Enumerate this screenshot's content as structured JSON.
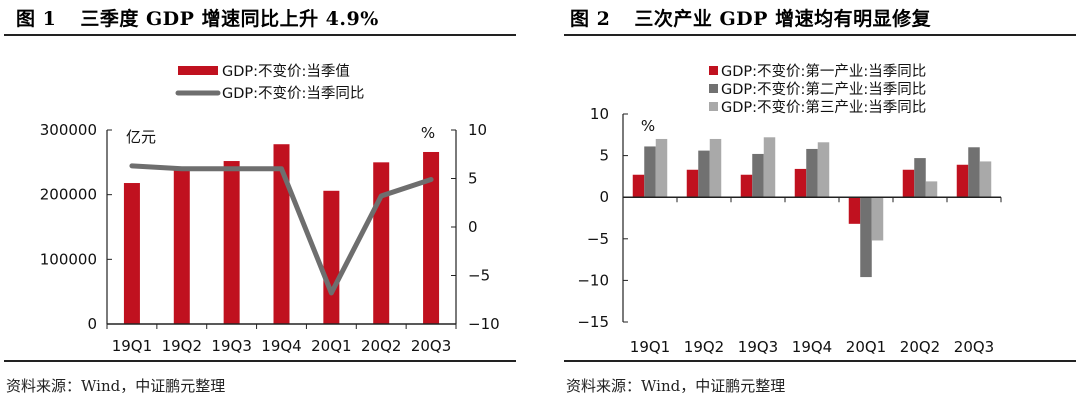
{
  "panels": [
    {
      "fig_num": "图 1",
      "title": "三季度 GDP 增速同比上升 4.9%",
      "source": "资料来源：Wind，中证鹏元整理"
    },
    {
      "fig_num": "图 2",
      "title": "三次产业 GDP 增速均有明显修复",
      "source": "资料来源：Wind，中证鹏元整理"
    }
  ],
  "colors": {
    "red": "#c0111f",
    "dark_gray": "#717171",
    "light_gray": "#a9a9a9",
    "line_gray": "#6e6e6e",
    "axis": "#222222"
  },
  "chart_data": [
    {
      "type": "bar+line",
      "title": "三季度 GDP 增速同比上升 4.9%",
      "categories": [
        "19Q1",
        "19Q2",
        "19Q3",
        "19Q4",
        "20Q1",
        "20Q2",
        "20Q3"
      ],
      "series": [
        {
          "name": "GDP:不变价:当季值",
          "type": "bar",
          "axis": "left",
          "color": "#c0111f",
          "values": [
            218000,
            240000,
            252000,
            278000,
            206000,
            250000,
            266000
          ]
        },
        {
          "name": "GDP:不变价:当季同比",
          "type": "line",
          "axis": "right",
          "color": "#6e6e6e",
          "values": [
            6.3,
            6.0,
            6.0,
            6.0,
            -6.8,
            3.2,
            4.9
          ]
        }
      ],
      "left_axis": {
        "unit": "亿元",
        "ylim": [
          0,
          300000
        ],
        "ticks": [
          "0",
          "100000",
          "200000",
          "300000"
        ],
        "tick_values": [
          0,
          100000,
          200000,
          300000
        ]
      },
      "right_axis": {
        "unit": "%",
        "ylim": [
          -10,
          10
        ],
        "ticks": [
          "−10",
          "−5",
          "0",
          "5",
          "10"
        ],
        "tick_values": [
          -10,
          -5,
          0,
          5,
          10
        ]
      },
      "legend": "top-center",
      "grid": false
    },
    {
      "type": "bar",
      "title": "三次产业 GDP 增速均有明显修复",
      "categories": [
        "19Q1",
        "19Q2",
        "19Q3",
        "19Q4",
        "20Q1",
        "20Q2",
        "20Q3"
      ],
      "series": [
        {
          "name": "GDP:不变价:第一产业:当季同比",
          "color": "#c0111f",
          "values": [
            2.7,
            3.3,
            2.7,
            3.4,
            -3.2,
            3.3,
            3.9
          ]
        },
        {
          "name": "GDP:不变价:第二产业:当季同比",
          "color": "#717171",
          "values": [
            6.1,
            5.6,
            5.2,
            5.8,
            -9.6,
            4.7,
            6.0
          ]
        },
        {
          "name": "GDP:不变价:第三产业:当季同比",
          "color": "#a9a9a9",
          "values": [
            7.0,
            7.0,
            7.2,
            6.6,
            -5.2,
            1.9,
            4.3
          ]
        }
      ],
      "y_axis": {
        "unit": "%",
        "ylim": [
          -15,
          10
        ],
        "ticks": [
          "−15",
          "−10",
          "−5",
          "0",
          "5",
          "10"
        ],
        "tick_values": [
          -15,
          -10,
          -5,
          0,
          5,
          10
        ]
      },
      "legend": "top-center",
      "grid": false
    }
  ]
}
